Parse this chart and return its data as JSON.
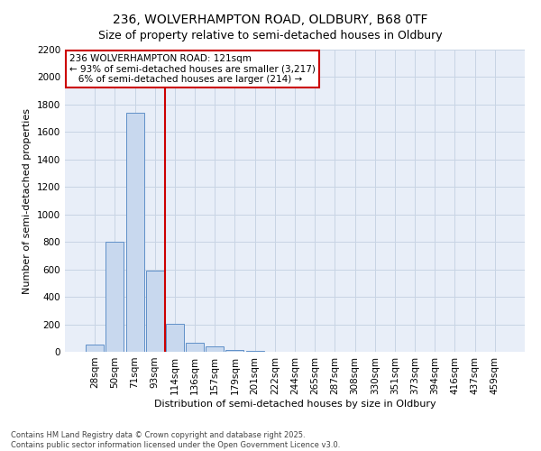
{
  "title1": "236, WOLVERHAMPTON ROAD, OLDBURY, B68 0TF",
  "title2": "Size of property relative to semi-detached houses in Oldbury",
  "xlabel": "Distribution of semi-detached houses by size in Oldbury",
  "ylabel": "Number of semi-detached properties",
  "bin_labels": [
    "28sqm",
    "50sqm",
    "71sqm",
    "93sqm",
    "114sqm",
    "136sqm",
    "157sqm",
    "179sqm",
    "201sqm",
    "222sqm",
    "244sqm",
    "265sqm",
    "287sqm",
    "308sqm",
    "330sqm",
    "351sqm",
    "373sqm",
    "394sqm",
    "416sqm",
    "437sqm",
    "459sqm"
  ],
  "bin_values": [
    50,
    800,
    1740,
    590,
    205,
    65,
    40,
    15,
    5,
    0,
    0,
    0,
    0,
    0,
    0,
    0,
    0,
    0,
    0,
    0,
    0
  ],
  "bar_color": "#c8d8ee",
  "bar_edge_color": "#6090c8",
  "vline_after_index": 3,
  "vline_color": "#cc0000",
  "annotation_line1": "236 WOLVERHAMPTON ROAD: 121sqm",
  "annotation_line2": "← 93% of semi-detached houses are smaller (3,217)",
  "annotation_line3": "   6% of semi-detached houses are larger (214) →",
  "annotation_box_color": "#cc0000",
  "ylim": [
    0,
    2200
  ],
  "yticks": [
    0,
    200,
    400,
    600,
    800,
    1000,
    1200,
    1400,
    1600,
    1800,
    2000,
    2200
  ],
  "footer": "Contains HM Land Registry data © Crown copyright and database right 2025.\nContains public sector information licensed under the Open Government Licence v3.0.",
  "bg_color": "#ffffff",
  "plot_bg_color": "#e8eef8",
  "grid_color": "#c8d4e4",
  "title_fontsize": 10,
  "subtitle_fontsize": 9,
  "axis_label_fontsize": 8,
  "tick_fontsize": 7.5,
  "annotation_fontsize": 7.5,
  "footer_fontsize": 6
}
